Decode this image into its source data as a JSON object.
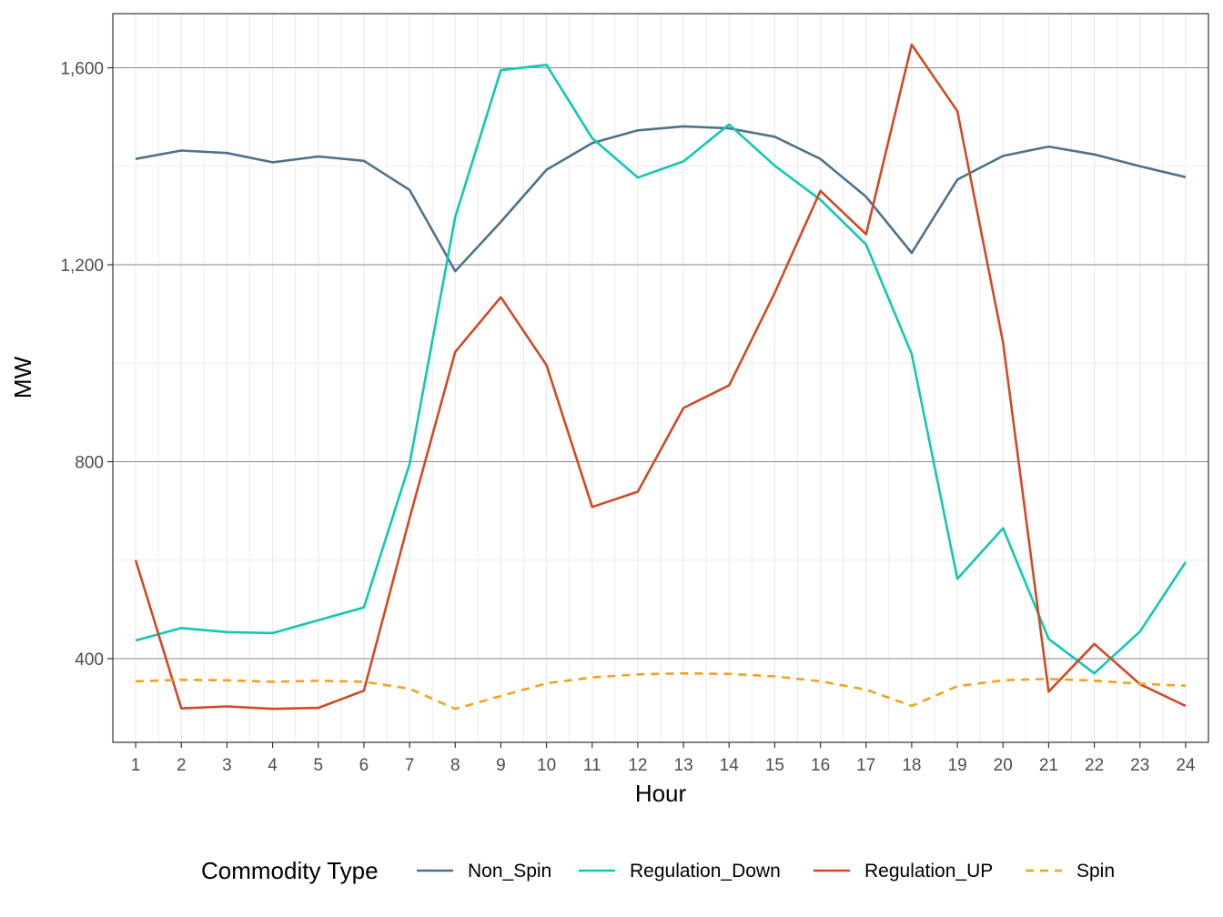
{
  "chart_data": {
    "type": "line",
    "xlabel": "Hour",
    "ylabel": "MW",
    "x": [
      1,
      2,
      3,
      4,
      5,
      6,
      7,
      8,
      9,
      10,
      11,
      12,
      13,
      14,
      15,
      16,
      17,
      18,
      19,
      20,
      21,
      22,
      23,
      24
    ],
    "x_tick_labels": [
      "1",
      "2",
      "3",
      "4",
      "5",
      "6",
      "7",
      "8",
      "9",
      "10",
      "11",
      "12",
      "13",
      "14",
      "15",
      "16",
      "17",
      "18",
      "19",
      "20",
      "21",
      "22",
      "23",
      "24"
    ],
    "xlim": [
      0.5,
      24.5
    ],
    "ylim": [
      230,
      1710
    ],
    "y_ticks": [
      400,
      800,
      1200,
      1600
    ],
    "y_tick_labels": [
      "400",
      "800",
      "1,200",
      "1,600"
    ],
    "y_minor_ticks": [
      600,
      1000,
      1400
    ],
    "grid": true,
    "legend_position": "bottom",
    "legend_title": "Commodity Type",
    "series": [
      {
        "name": "Non_Spin",
        "color": "#4e7389",
        "dash": "solid",
        "values": [
          1415,
          1432,
          1427,
          1408,
          1420,
          1411,
          1352,
          1187,
          1287,
          1393,
          1447,
          1473,
          1481,
          1477,
          1460,
          1415,
          1338,
          1224,
          1373,
          1421,
          1440,
          1424,
          1400,
          1378
        ]
      },
      {
        "name": "Regulation_Down",
        "color": "#10c8b4",
        "dash": "solid",
        "values": [
          437,
          462,
          454,
          452,
          478,
          504,
          795,
          1297,
          1595,
          1606,
          1457,
          1377,
          1410,
          1485,
          1401,
          1332,
          1241,
          1019,
          562,
          665,
          440,
          370,
          455,
          596
        ]
      },
      {
        "name": "Regulation_UP",
        "color": "#cf4a25",
        "dash": "solid",
        "values": [
          600,
          299,
          303,
          298,
          300,
          335,
          685,
          1023,
          1134,
          996,
          708,
          739,
          909,
          955,
          1143,
          1350,
          1262,
          1647,
          1512,
          1042,
          333,
          430,
          348,
          304
        ]
      },
      {
        "name": "Spin",
        "color": "#f4a11a",
        "dash": "dashed",
        "values": [
          354,
          357,
          356,
          353,
          355,
          353,
          339,
          298,
          324,
          350,
          362,
          368,
          370,
          369,
          364,
          354,
          337,
          304,
          344,
          356,
          359,
          355,
          349,
          345
        ]
      }
    ]
  }
}
